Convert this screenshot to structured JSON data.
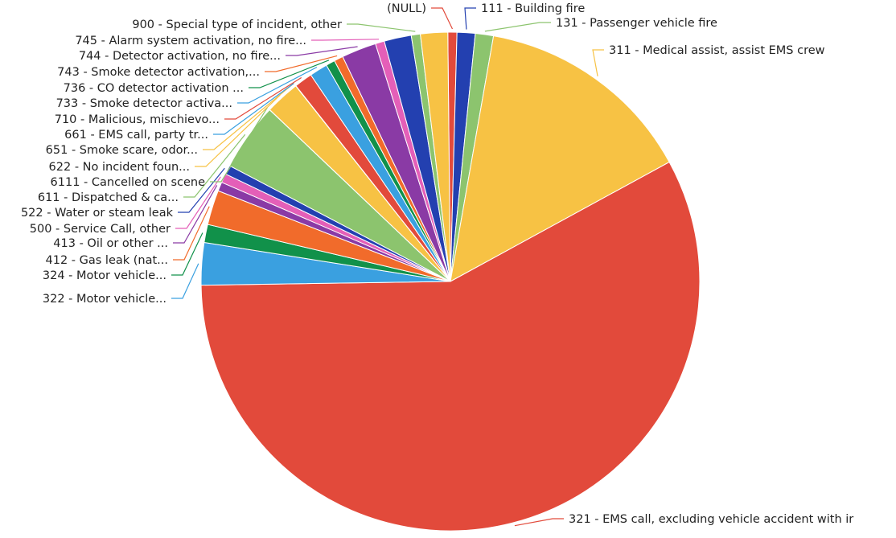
{
  "chart_data": {
    "type": "pie",
    "title": "",
    "legend": "none",
    "slices": [
      {
        "label": "(NULL)",
        "value": 0.6,
        "color": "#e24a3b"
      },
      {
        "label": "111 - Building fire",
        "value": 1.2,
        "color": "#2340b0"
      },
      {
        "label": "131 - Passenger vehicle fire",
        "value": 1.2,
        "color": "#8cc46e"
      },
      {
        "label": "311 - Medical assist, assist EMS crew",
        "value": 14.6,
        "color": "#f7c244"
      },
      {
        "label": "321 - EMS call, excluding vehicle accident with ir",
        "value": 59.0,
        "color": "#e24a3b"
      },
      {
        "label": "322 - Motor vehicle...",
        "value": 2.8,
        "color": "#3aa0e0"
      },
      {
        "label": "324 - Motor vehicle...",
        "value": 1.2,
        "color": "#11914a"
      },
      {
        "label": "412 - Gas leak (nat...",
        "value": 2.3,
        "color": "#f16b2b"
      },
      {
        "label": "413 - Oil or other ...",
        "value": 0.6,
        "color": "#8a3aa5"
      },
      {
        "label": "500 - Service Call, other",
        "value": 0.6,
        "color": "#e45fb8"
      },
      {
        "label": "522 - Water or steam leak",
        "value": 0.6,
        "color": "#2340b0"
      },
      {
        "label": "611 - Dispatched & ca...",
        "value": 4.5,
        "color": "#8cc46e"
      },
      {
        "label": "6111 - Cancelled on scene",
        "value": 0.01,
        "color": "#8cc46e"
      },
      {
        "label": "622 - No incident foun...",
        "value": 2.3,
        "color": "#f7c244"
      },
      {
        "label": "651 - Smoke scare, odor...",
        "value": 0.01,
        "color": "#f7c244"
      },
      {
        "label": "661 - EMS call, party tr...",
        "value": 0.01,
        "color": "#3aa0e0"
      },
      {
        "label": "710 - Malicious, mischievo...",
        "value": 1.2,
        "color": "#e24a3b"
      },
      {
        "label": "733 - Smoke detector activa...",
        "value": 1.2,
        "color": "#3aa0e0"
      },
      {
        "label": "736 - CO detector activation ...",
        "value": 0.6,
        "color": "#11914a"
      },
      {
        "label": "743 - Smoke detector activation,...",
        "value": 0.6,
        "color": "#f16b2b"
      },
      {
        "label": "744 - Detector activation, no fire...",
        "value": 2.3,
        "color": "#8a3aa5"
      },
      {
        "label": "745 - Alarm system activation, no fire...",
        "value": 0.6,
        "color": "#e45fb8"
      },
      {
        "label": "",
        "value": 1.8,
        "color": "#2340b0"
      },
      {
        "label": "900 - Special type of incident, other",
        "value": 0.6,
        "color": "#8cc46e"
      },
      {
        "label": "",
        "value": 1.8,
        "color": "#f7c244"
      }
    ]
  }
}
